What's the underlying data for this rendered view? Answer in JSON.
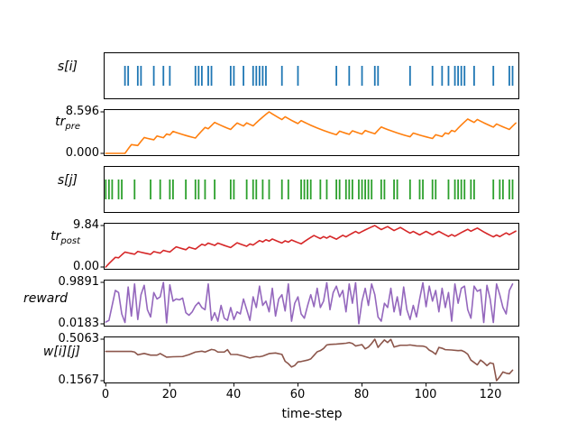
{
  "figure": {
    "background": "#ffffff",
    "xlabel": "time-step",
    "x_ticks": [
      "0",
      "20",
      "40",
      "60",
      "80",
      "100",
      "120"
    ],
    "x_tick_values": [
      0,
      20,
      40,
      60,
      80,
      100,
      120
    ]
  },
  "chart_data": {
    "type": "line",
    "x_range": [
      0,
      128
    ],
    "xlabel": "time-step",
    "grid": false,
    "legend": "none",
    "panels": [
      {
        "name": "s-i",
        "label": {
          "main": "s[i]",
          "sub": ""
        },
        "type": "spikes",
        "color": "#1f77b4",
        "spike_times": [
          6,
          7,
          10,
          11,
          15,
          18,
          20,
          28,
          29,
          30,
          32,
          33,
          39,
          40,
          43,
          46,
          47,
          48,
          49,
          50,
          55,
          60,
          72,
          76,
          80,
          84,
          85,
          95,
          102,
          105,
          107,
          109,
          110,
          111,
          112,
          115,
          121,
          126,
          127
        ]
      },
      {
        "name": "tr-pre",
        "label": {
          "main": "tr",
          "sub": "pre"
        },
        "type": "trace",
        "color": "#ff7f0e",
        "ymax_label": "8.596",
        "ymin_label": "0.000",
        "y_min": 0.0,
        "y_max": 8.596,
        "derived_from_spikes": "s-i",
        "decay": 0.95,
        "increment": 1.0
      },
      {
        "name": "s-j",
        "label": {
          "main": "s[j]",
          "sub": ""
        },
        "type": "spikes",
        "color": "#2ca02c",
        "spike_times": [
          0,
          1,
          2,
          4,
          5,
          9,
          14,
          17,
          20,
          21,
          25,
          28,
          29,
          31,
          34,
          39,
          40,
          44,
          46,
          47,
          49,
          51,
          55,
          57,
          61,
          62,
          63,
          64,
          67,
          69,
          72,
          73,
          75,
          76,
          77,
          79,
          80,
          81,
          82,
          83,
          86,
          87,
          90,
          91,
          95,
          98,
          99,
          102,
          103,
          107,
          109,
          110,
          111,
          112,
          114,
          115,
          121,
          123,
          124,
          126,
          127
        ]
      },
      {
        "name": "tr-post",
        "label": {
          "main": "tr",
          "sub": "post"
        },
        "type": "trace",
        "color": "#d62728",
        "ymax_label": "9.84",
        "ymin_label": "0.00",
        "y_min": 0.0,
        "y_max": 9.84,
        "derived_from_spikes": "s-j",
        "decay": 0.95,
        "increment": 1.0
      },
      {
        "name": "reward",
        "label": {
          "main": "reward",
          "sub": ""
        },
        "type": "series",
        "color": "#9467bd",
        "ymax_label": "0.9891",
        "ymin_label": "0.0183",
        "y_min": 0.0183,
        "y_max": 0.9891,
        "values": [
          0.06,
          0.1,
          0.45,
          0.8,
          0.75,
          0.25,
          0.05,
          0.88,
          0.2,
          0.95,
          0.12,
          0.7,
          0.92,
          0.35,
          0.18,
          0.75,
          0.6,
          0.65,
          0.9891,
          0.04,
          0.93,
          0.55,
          0.6,
          0.58,
          0.62,
          0.28,
          0.22,
          0.3,
          0.44,
          0.52,
          0.4,
          0.35,
          0.95,
          0.1,
          0.28,
          0.08,
          0.45,
          0.15,
          0.1,
          0.4,
          0.12,
          0.3,
          0.25,
          0.6,
          0.35,
          0.1,
          0.65,
          0.4,
          0.9,
          0.45,
          0.55,
          0.3,
          0.85,
          0.2,
          0.6,
          0.7,
          0.32,
          0.95,
          0.08,
          0.5,
          0.65,
          0.25,
          0.15,
          0.44,
          0.7,
          0.42,
          0.85,
          0.4,
          0.55,
          0.98,
          0.35,
          0.75,
          0.9,
          0.65,
          0.8,
          0.3,
          0.95,
          0.5,
          0.98,
          0.0183,
          0.55,
          0.85,
          0.45,
          0.95,
          0.7,
          0.18,
          0.08,
          0.5,
          0.4,
          0.85,
          0.3,
          0.65,
          0.22,
          0.88,
          0.35,
          0.12,
          0.45,
          0.18,
          0.6,
          0.98,
          0.42,
          0.9,
          0.55,
          0.8,
          0.3,
          0.85,
          0.4,
          0.75,
          0.08,
          0.95,
          0.5,
          0.85,
          0.9,
          0.35,
          0.15,
          0.9,
          0.78,
          0.82,
          0.05,
          0.92,
          0.6,
          0.05,
          0.95,
          0.7,
          0.4,
          0.25,
          0.8,
          0.95
        ]
      },
      {
        "name": "w-i-j",
        "label": {
          "main": "w[i][j]",
          "sub": ""
        },
        "type": "keypoints",
        "color": "#8c564b",
        "ymax_label": "0.5063",
        "ymin_label": "0.1567",
        "y_min": 0.1567,
        "y_max": 0.5063,
        "points": [
          [
            0,
            0.403
          ],
          [
            8,
            0.403
          ],
          [
            9,
            0.398
          ],
          [
            10,
            0.375
          ],
          [
            12,
            0.386
          ],
          [
            14,
            0.372
          ],
          [
            16,
            0.372
          ],
          [
            17,
            0.385
          ],
          [
            19,
            0.355
          ],
          [
            21,
            0.358
          ],
          [
            24,
            0.36
          ],
          [
            26,
            0.376
          ],
          [
            28,
            0.398
          ],
          [
            30,
            0.405
          ],
          [
            31,
            0.398
          ],
          [
            33,
            0.42
          ],
          [
            34,
            0.415
          ],
          [
            35,
            0.398
          ],
          [
            37,
            0.398
          ],
          [
            38,
            0.418
          ],
          [
            39,
            0.378
          ],
          [
            41,
            0.377
          ],
          [
            43,
            0.364
          ],
          [
            45,
            0.348
          ],
          [
            47,
            0.36
          ],
          [
            48,
            0.358
          ],
          [
            49,
            0.364
          ],
          [
            51,
            0.385
          ],
          [
            53,
            0.39
          ],
          [
            55,
            0.378
          ],
          [
            56,
            0.32
          ],
          [
            57,
            0.3
          ],
          [
            58,
            0.272
          ],
          [
            59,
            0.285
          ],
          [
            60,
            0.315
          ],
          [
            61,
            0.318
          ],
          [
            63,
            0.33
          ],
          [
            64,
            0.34
          ],
          [
            65,
            0.37
          ],
          [
            66,
            0.4
          ],
          [
            67,
            0.41
          ],
          [
            68,
            0.428
          ],
          [
            69,
            0.458
          ],
          [
            70,
            0.462
          ],
          [
            72,
            0.465
          ],
          [
            74,
            0.47
          ],
          [
            75,
            0.472
          ],
          [
            76,
            0.478
          ],
          [
            77,
            0.47
          ],
          [
            78,
            0.449
          ],
          [
            79,
            0.455
          ],
          [
            80,
            0.46
          ],
          [
            81,
            0.425
          ],
          [
            82,
            0.44
          ],
          [
            83,
            0.47
          ],
          [
            84,
            0.5063
          ],
          [
            85,
            0.437
          ],
          [
            86,
            0.47
          ],
          [
            87,
            0.5
          ],
          [
            88,
            0.478
          ],
          [
            89,
            0.505
          ],
          [
            90,
            0.44
          ],
          [
            91,
            0.448
          ],
          [
            92,
            0.455
          ],
          [
            94,
            0.455
          ],
          [
            95,
            0.458
          ],
          [
            97,
            0.45
          ],
          [
            99,
            0.448
          ],
          [
            100,
            0.44
          ],
          [
            101,
            0.414
          ],
          [
            102,
            0.4
          ],
          [
            103,
            0.379
          ],
          [
            104,
            0.437
          ],
          [
            105,
            0.43
          ],
          [
            106,
            0.418
          ],
          [
            108,
            0.415
          ],
          [
            110,
            0.41
          ],
          [
            111,
            0.412
          ],
          [
            112,
            0.4
          ],
          [
            113,
            0.38
          ],
          [
            114,
            0.33
          ],
          [
            115,
            0.31
          ],
          [
            116,
            0.29
          ],
          [
            117,
            0.33
          ],
          [
            118,
            0.31
          ],
          [
            119,
            0.284
          ],
          [
            120,
            0.307
          ],
          [
            121,
            0.3
          ],
          [
            122,
            0.1567
          ],
          [
            123,
            0.19
          ],
          [
            124,
            0.23
          ],
          [
            125,
            0.22
          ],
          [
            126,
            0.215
          ],
          [
            127,
            0.245
          ]
        ]
      }
    ]
  }
}
